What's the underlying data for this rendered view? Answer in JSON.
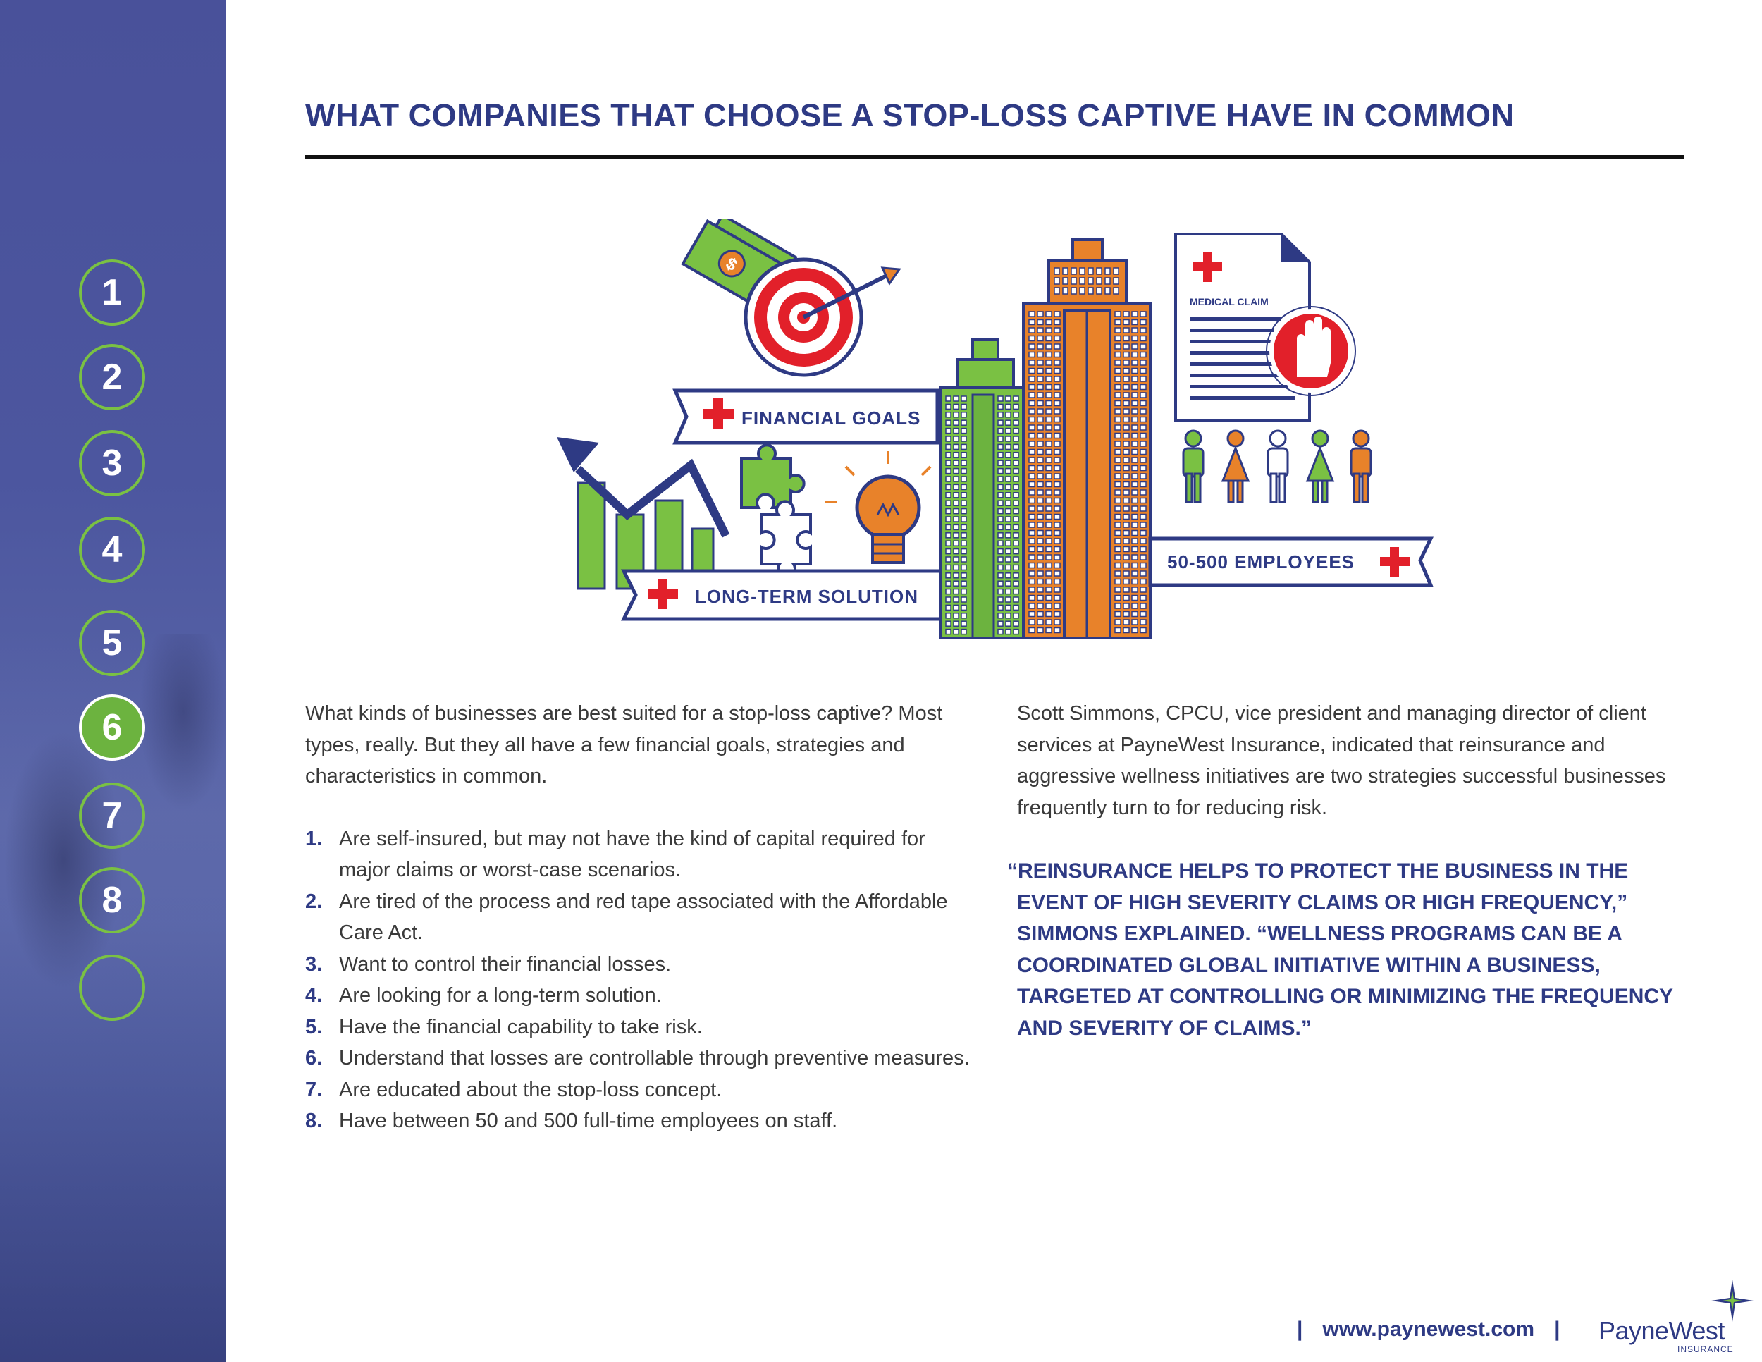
{
  "title": "WHAT COMPANIES THAT CHOOSE A STOP-LOSS CAPTIVE HAVE IN COMMON",
  "sidebar": {
    "items": [
      {
        "label": "1",
        "active": false
      },
      {
        "label": "2",
        "active": false
      },
      {
        "label": "3",
        "active": false
      },
      {
        "label": "4",
        "active": false
      },
      {
        "label": "5",
        "active": false
      },
      {
        "label": "6",
        "active": true
      },
      {
        "label": "7",
        "active": false
      },
      {
        "label": "8",
        "active": false
      },
      {
        "label": "",
        "active": false
      }
    ]
  },
  "illustration": {
    "financial_goals": "FINANCIAL GOALS",
    "long_term_solution": "LONG-TERM SOLUTION",
    "employees": "50-500 EMPLOYEES",
    "medical_claim": "MEDICAL CLAIM",
    "dollar_symbol": "$"
  },
  "intro": "What kinds of businesses are best suited for a stop-loss captive? Most types, really. But they all have a few financial goals, strategies and characteristics in common.",
  "list": [
    {
      "num": "1.",
      "text": "Are self-insured, but may not have the kind of capital required for major claims or worst-case scenarios."
    },
    {
      "num": "2.",
      "text": "Are tired of the process and red tape associated with the Affordable Care Act."
    },
    {
      "num": "3.",
      "text": "Want to control their financial losses."
    },
    {
      "num": "4.",
      "text": "Are looking for a long-term solution."
    },
    {
      "num": "5.",
      "text": "Have the financial capability to take risk."
    },
    {
      "num": "6.",
      "text": "Understand that losses are controllable through preventive measures."
    },
    {
      "num": "7.",
      "text": "Are educated about the stop-loss concept."
    },
    {
      "num": "8.",
      "text": "Have between 50 and 500 full-time employees on staff."
    }
  ],
  "right_paragraph": "Scott Simmons, CPCU, vice president and managing director of client services at PayneWest Insurance, indicated that reinsurance and aggressive wellness initiatives are two strategies successful businesses frequently turn to for reducing risk.",
  "quote": "“REINSURANCE HELPS TO PROTECT THE BUSINESS IN THE EVENT OF HIGH SEVERITY CLAIMS OR HIGH FREQUENCY,” SIMMONS EXPLAINED. “WELLNESS PROGRAMS CAN BE A COORDINATED GLOBAL INITIATIVE WITHIN A BUSINESS, TARGETED AT CONTROLLING OR MINIMIZING THE FREQUENCY AND SEVERITY OF CLAIMS.”",
  "footer": {
    "separator": "|",
    "url": "www.paynewest.com",
    "brand": "PayneWest",
    "brand_sub": "INSURANCE"
  },
  "colors": {
    "navy": "#2e3a84",
    "green": "#7ac143",
    "orange": "#e8822a",
    "red": "#e2202a"
  }
}
